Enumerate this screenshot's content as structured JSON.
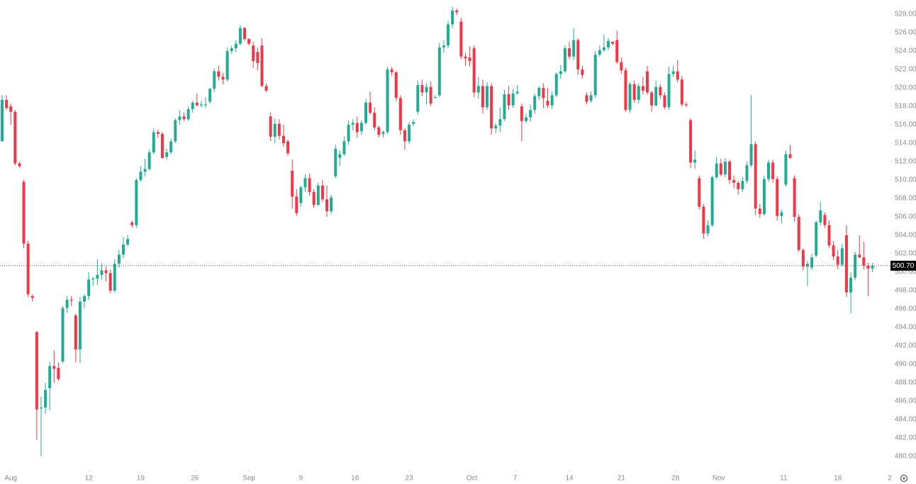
{
  "chart_data": {
    "type": "candlestick",
    "up_color": "#22ab94",
    "down_color": "#f23645",
    "ylim": [
      478.77,
      529.54
    ],
    "yticks": [
      {
        "value": 480,
        "label": "480.00"
      },
      {
        "value": 482,
        "label": "482.00"
      },
      {
        "value": 484,
        "label": "484.00"
      },
      {
        "value": 486,
        "label": "486.00"
      },
      {
        "value": 488,
        "label": "488.00"
      },
      {
        "value": 490,
        "label": "490.00"
      },
      {
        "value": 492,
        "label": "492.00"
      },
      {
        "value": 494,
        "label": "494.00"
      },
      {
        "value": 496,
        "label": "496.00"
      },
      {
        "value": 498,
        "label": "498.00"
      },
      {
        "value": 500,
        "label": "500.00"
      },
      {
        "value": 502,
        "label": "502.00"
      },
      {
        "value": 504,
        "label": "504.00"
      },
      {
        "value": 506,
        "label": "506.00"
      },
      {
        "value": 508,
        "label": "508.00"
      },
      {
        "value": 510,
        "label": "510.00"
      },
      {
        "value": 512,
        "label": "512.00"
      },
      {
        "value": 514,
        "label": "514.00"
      },
      {
        "value": 516,
        "label": "516.00"
      },
      {
        "value": 518,
        "label": "518.00"
      },
      {
        "value": 520,
        "label": "520.00"
      },
      {
        "value": 522,
        "label": "522.00"
      },
      {
        "value": 524,
        "label": "524.00"
      },
      {
        "value": 526,
        "label": "526.00"
      },
      {
        "value": 528,
        "label": "528.00"
      }
    ],
    "xlim": [
      0,
      205
    ],
    "xticks": [
      {
        "value": 2,
        "label": "Aug"
      },
      {
        "value": 20,
        "label": "12"
      },
      {
        "value": 32,
        "label": "19"
      },
      {
        "value": 44.5,
        "label": "26"
      },
      {
        "value": 57,
        "label": "Sep"
      },
      {
        "value": 69,
        "label": "9"
      },
      {
        "value": 81.5,
        "label": "16"
      },
      {
        "value": 94,
        "label": "23"
      },
      {
        "value": 108.5,
        "label": "Oct"
      },
      {
        "value": 118.5,
        "label": "7"
      },
      {
        "value": 131,
        "label": "14"
      },
      {
        "value": 143,
        "label": "21"
      },
      {
        "value": 155.5,
        "label": "28"
      },
      {
        "value": 165.5,
        "label": "Nov"
      },
      {
        "value": 180.5,
        "label": "11"
      },
      {
        "value": 193,
        "label": "18"
      },
      {
        "value": 205,
        "label": "2"
      }
    ],
    "last_price": {
      "value": 500.7,
      "label": "500.70"
    },
    "ohlc": [
      [
        514.2,
        519.2,
        514.2,
        518.7
      ],
      [
        518.7,
        519.2,
        517.6,
        517.8
      ],
      [
        518,
        518.3,
        516,
        517.4
      ],
      [
        517.4,
        517.6,
        511.6,
        511.8
      ],
      [
        511.8,
        512,
        511.3,
        511.5
      ],
      [
        509.8,
        510,
        502.6,
        503.1
      ],
      [
        503.1,
        503.4,
        497.3,
        497.6
      ],
      [
        497.4,
        497.6,
        496.8,
        497.2
      ],
      [
        493.5,
        493.6,
        481.8,
        485.1
      ],
      [
        485.2,
        486.5,
        480,
        485.3
      ],
      [
        485.3,
        488,
        484.6,
        487.2
      ],
      [
        487.4,
        490.3,
        485,
        489.8
      ],
      [
        489.8,
        491.5,
        488,
        489.5
      ],
      [
        489.6,
        490.2,
        488.2,
        488.4
      ],
      [
        490.3,
        496.3,
        490.1,
        496.1
      ],
      [
        496.1,
        497.4,
        495.6,
        497
      ],
      [
        497,
        497.4,
        496.3,
        496.9
      ],
      [
        495.3,
        495.5,
        490.2,
        491.6
      ],
      [
        491.6,
        497.3,
        490.1,
        496.8
      ],
      [
        496.8,
        497.6,
        496.1,
        497.4
      ],
      [
        497.4,
        500,
        497,
        499.2
      ],
      [
        499.2,
        499.5,
        498.5,
        499.3
      ],
      [
        499.3,
        501.4,
        498.6,
        499.7
      ],
      [
        499.7,
        501,
        499.2,
        500.2
      ],
      [
        500.2,
        500.6,
        499,
        499.9
      ],
      [
        499.9,
        500.3,
        497.7,
        498
      ],
      [
        498,
        501.4,
        497.8,
        500.9
      ],
      [
        500.9,
        502.4,
        500.5,
        501.9
      ],
      [
        501.9,
        503.8,
        501.5,
        503
      ],
      [
        503,
        504,
        502.8,
        503.6
      ],
      [
        505.4,
        505.6,
        504.8,
        505.1
      ],
      [
        505.1,
        510.2,
        504.8,
        510
      ],
      [
        510,
        511.5,
        509.8,
        510.9
      ],
      [
        510.9,
        512.3,
        510.4,
        511.2
      ],
      [
        511.2,
        513.3,
        511,
        513
      ],
      [
        513,
        515.6,
        512.8,
        515.2
      ],
      [
        515.2,
        515.5,
        514.6,
        515
      ],
      [
        515,
        515.2,
        512.3,
        512.4
      ],
      [
        512.5,
        513.4,
        512.2,
        513
      ],
      [
        513,
        514.5,
        512.8,
        514.2
      ],
      [
        514.2,
        516.7,
        514,
        516.5
      ],
      [
        516.5,
        517.6,
        516,
        516.9
      ],
      [
        516.9,
        517.3,
        516.4,
        516.6
      ],
      [
        516.6,
        518,
        516.4,
        517.7
      ],
      [
        517.7,
        518.6,
        517.3,
        518.4
      ],
      [
        518.4,
        519.4,
        518,
        518.1
      ],
      [
        518.1,
        518.6,
        517.9,
        518.2
      ],
      [
        518.2,
        519,
        517.8,
        518.2
      ],
      [
        518.5,
        520,
        518.3,
        519.9
      ],
      [
        519.9,
        522.1,
        519.6,
        521.8
      ],
      [
        521.8,
        522.4,
        520.8,
        521.2
      ],
      [
        521.2,
        521.6,
        520.4,
        520.9
      ],
      [
        520.9,
        524.4,
        520.7,
        524
      ],
      [
        524,
        524.6,
        523.7,
        524.3
      ],
      [
        524.3,
        525.2,
        523.9,
        524.8
      ],
      [
        524.8,
        526.8,
        524.6,
        526.5
      ],
      [
        526.5,
        526.6,
        525.1,
        525.3
      ],
      [
        525.3,
        525.4,
        524.6,
        524.8
      ],
      [
        524.6,
        525,
        522.2,
        522.9
      ],
      [
        523.9,
        524.4,
        521.9,
        522.7
      ],
      [
        524.6,
        525.4,
        520.1,
        520.2
      ],
      [
        520.2,
        520.5,
        519.5,
        519.7
      ],
      [
        516.9,
        517.3,
        514.2,
        514.7
      ],
      [
        514.7,
        516.7,
        514,
        516.1
      ],
      [
        516.1,
        516.6,
        514.4,
        514.8
      ],
      [
        514.8,
        516,
        513.6,
        514
      ],
      [
        514.2,
        514.4,
        512.6,
        512.9
      ],
      [
        511,
        512.2,
        506.9,
        508.2
      ],
      [
        508.2,
        509,
        506.1,
        506.4
      ],
      [
        507.5,
        509.4,
        507.1,
        509.2
      ],
      [
        509.2,
        510.6,
        508.7,
        510.2
      ],
      [
        510.2,
        510.7,
        508.3,
        508.7
      ],
      [
        508.7,
        509,
        507,
        507.3
      ],
      [
        507.3,
        509.7,
        507.2,
        509.4
      ],
      [
        509.4,
        510,
        507.6,
        507.9
      ],
      [
        507.9,
        509.4,
        506,
        506.6
      ],
      [
        506.6,
        508.4,
        506.3,
        508.1
      ],
      [
        510.4,
        513.8,
        510.2,
        513.4
      ],
      [
        512.4,
        513.2,
        511.5,
        512.8
      ],
      [
        512.8,
        514.7,
        512.6,
        514.2
      ],
      [
        514.2,
        516.5,
        513.8,
        516
      ],
      [
        516,
        516.6,
        515.4,
        516.2
      ],
      [
        516.2,
        516.9,
        514.6,
        515.2
      ],
      [
        515.3,
        516.5,
        514.9,
        516.2
      ],
      [
        516.2,
        518.8,
        516,
        518.4
      ],
      [
        518.4,
        519.6,
        517.1,
        517.3
      ],
      [
        517.3,
        517.9,
        515.4,
        515.7
      ],
      [
        515.7,
        515.9,
        514.6,
        514.9
      ],
      [
        515,
        515.4,
        514.6,
        515.2
      ],
      [
        515.2,
        522.3,
        515,
        522
      ],
      [
        522,
        522.3,
        521.3,
        521.7
      ],
      [
        521.7,
        521.8,
        518.6,
        518.9
      ],
      [
        518.9,
        519.2,
        514.9,
        515.4
      ],
      [
        515.4,
        515.6,
        513.3,
        514.2
      ],
      [
        514.2,
        516.3,
        513.9,
        516
      ],
      [
        516.1,
        516.6,
        515.8,
        516.3
      ],
      [
        517.4,
        520.8,
        517.1,
        520.3
      ],
      [
        520.3,
        520.9,
        519.1,
        519.5
      ],
      [
        519.5,
        520.5,
        518.2,
        520.1
      ],
      [
        520.1,
        520.7,
        518,
        518.3
      ],
      [
        519,
        519.2,
        518.8,
        519
      ],
      [
        519.2,
        524.9,
        519,
        524.4
      ],
      [
        524.4,
        525.2,
        523.8,
        524.6
      ],
      [
        524.6,
        527.3,
        524.3,
        526.9
      ],
      [
        526.9,
        528.8,
        526.5,
        528.4
      ],
      [
        528.4,
        528.6,
        527.9,
        528.2
      ],
      [
        527.2,
        527.6,
        523.1,
        523.4
      ],
      [
        523.4,
        523.8,
        522.4,
        523.2
      ],
      [
        523.3,
        524.5,
        522.3,
        522.9
      ],
      [
        524.3,
        524.6,
        519,
        519.5
      ],
      [
        519.5,
        521.2,
        518.8,
        520.2
      ],
      [
        520.2,
        520.9,
        517.2,
        517.9
      ],
      [
        517.9,
        520.6,
        517.6,
        520.2
      ],
      [
        520.2,
        520.5,
        514.9,
        515.6
      ],
      [
        515.6,
        516.2,
        515.1,
        515.9
      ],
      [
        515.9,
        517.9,
        515.2,
        516.6
      ],
      [
        516.6,
        519.8,
        516.4,
        519.3
      ],
      [
        519.3,
        520.2,
        517.6,
        518.1
      ],
      [
        518.1,
        519.9,
        517.8,
        519.4
      ],
      [
        519.4,
        520.3,
        519.2,
        519.6
      ],
      [
        518,
        518.3,
        514.2,
        516.4
      ],
      [
        516.4,
        517.2,
        516.2,
        516.8
      ],
      [
        516.8,
        518.2,
        516.3,
        517.6
      ],
      [
        517.6,
        519.4,
        517.2,
        519.1
      ],
      [
        519.1,
        520.2,
        518.7,
        520
      ],
      [
        520,
        520.5,
        517.8,
        518.9
      ],
      [
        518.6,
        520,
        517.8,
        518.1
      ],
      [
        518.1,
        519.6,
        517.7,
        519.2
      ],
      [
        519.2,
        521.7,
        519,
        521.5
      ],
      [
        521.5,
        522.5,
        521,
        521.8
      ],
      [
        521.8,
        524.6,
        521.6,
        524.3
      ],
      [
        524.3,
        525,
        523.1,
        523.4
      ],
      [
        523.4,
        526.5,
        523,
        525.2
      ],
      [
        525.2,
        525.4,
        521.4,
        522
      ],
      [
        522,
        522.4,
        521,
        521.4
      ],
      [
        519.2,
        519.5,
        518.2,
        518.5
      ],
      [
        518.6,
        519.6,
        518.4,
        519.2
      ],
      [
        519.2,
        524,
        518.9,
        523.6
      ],
      [
        523.6,
        524.6,
        523.4,
        524.1
      ],
      [
        524.1,
        525.8,
        523.9,
        524.4
      ],
      [
        524.4,
        525.4,
        524.1,
        525.1
      ],
      [
        525,
        525,
        524.6,
        524.8
      ],
      [
        525.2,
        526.2,
        522.6,
        522.8
      ],
      [
        522.8,
        523.3,
        521.5,
        521.9
      ],
      [
        521.9,
        522.2,
        517.4,
        517.6
      ],
      [
        517.6,
        520.6,
        517.3,
        520.4
      ],
      [
        520.4,
        520.8,
        518.4,
        518.7
      ],
      [
        518.7,
        520.5,
        518.3,
        520.2
      ],
      [
        520.2,
        521.2,
        519.3,
        519.7
      ],
      [
        521.8,
        522.4,
        519.3,
        519.5
      ],
      [
        519.5,
        519.7,
        517.4,
        518.1
      ],
      [
        518.1,
        520.8,
        518,
        520.1
      ],
      [
        520.1,
        520.4,
        518.8,
        519.2
      ],
      [
        519.2,
        519.5,
        517.7,
        517.9
      ],
      [
        517.9,
        522.3,
        517.6,
        521.5
      ],
      [
        521.5,
        522.4,
        521.2,
        521.8
      ],
      [
        521.8,
        523,
        520.6,
        520.9
      ],
      [
        520.9,
        521.3,
        518,
        518.2
      ],
      [
        518.2,
        518.5,
        517.9,
        518.1
      ],
      [
        516.5,
        516.7,
        511.3,
        511.9
      ],
      [
        511.9,
        513.2,
        511.2,
        512.2
      ],
      [
        510.2,
        510.5,
        506.8,
        507.1
      ],
      [
        507.1,
        507.4,
        503.6,
        504.2
      ],
      [
        504.2,
        505.6,
        503.9,
        505.1
      ],
      [
        505.1,
        510.5,
        504.9,
        510.3
      ],
      [
        510.3,
        512.5,
        510.1,
        511.8
      ],
      [
        511.8,
        512.3,
        510.4,
        510.6
      ],
      [
        510.6,
        512.4,
        510.3,
        512
      ],
      [
        512,
        512.2,
        509.6,
        510
      ],
      [
        510,
        510.5,
        509.1,
        509.7
      ],
      [
        509.7,
        509.9,
        508.4,
        509
      ],
      [
        509,
        510.3,
        508.7,
        509.9
      ],
      [
        509.9,
        512,
        509.6,
        511.6
      ],
      [
        511.6,
        519.2,
        511.4,
        513.9
      ],
      [
        513.9,
        514.2,
        506.2,
        506.9
      ],
      [
        506.9,
        507.4,
        505.9,
        506.3
      ],
      [
        506.3,
        510.5,
        506.1,
        510.1
      ],
      [
        510.1,
        512.2,
        509.8,
        511.9
      ],
      [
        511.9,
        512.2,
        509.7,
        510.1
      ],
      [
        510.1,
        510.4,
        505.6,
        506.1
      ],
      [
        506.1,
        506.8,
        505.3,
        506.5
      ],
      [
        509.5,
        513.2,
        509.3,
        512.8
      ],
      [
        512.8,
        513.8,
        512.3,
        512.4
      ],
      [
        510.2,
        510.5,
        505.5,
        506
      ],
      [
        506,
        506.3,
        502.2,
        502.4
      ],
      [
        502.4,
        502.6,
        500.2,
        500.6
      ],
      [
        500.6,
        501.2,
        498.5,
        500.9
      ],
      [
        500.5,
        502,
        500.2,
        501.6
      ],
      [
        501.8,
        505.6,
        501.6,
        505.4
      ],
      [
        505.4,
        507.6,
        505.1,
        506.7
      ],
      [
        506.2,
        506.5,
        504.8,
        505.1
      ],
      [
        505.1,
        505.6,
        502.6,
        502.9
      ],
      [
        502.9,
        503.4,
        501.3,
        501.7
      ],
      [
        501.7,
        502.4,
        500.3,
        500.8
      ],
      [
        500.8,
        503.1,
        500.6,
        502.6
      ],
      [
        504,
        505.1,
        497.3,
        497.8
      ],
      [
        497.8,
        500,
        495.5,
        499.4
      ],
      [
        499.4,
        502.2,
        499.1,
        501.9
      ],
      [
        501.9,
        504,
        501.5,
        501.6
      ],
      [
        501.6,
        503.3,
        500.3,
        500.7
      ],
      [
        500.7,
        501,
        497.4,
        500.4
      ],
      [
        500.4,
        501,
        500,
        500.7
      ]
    ]
  }
}
